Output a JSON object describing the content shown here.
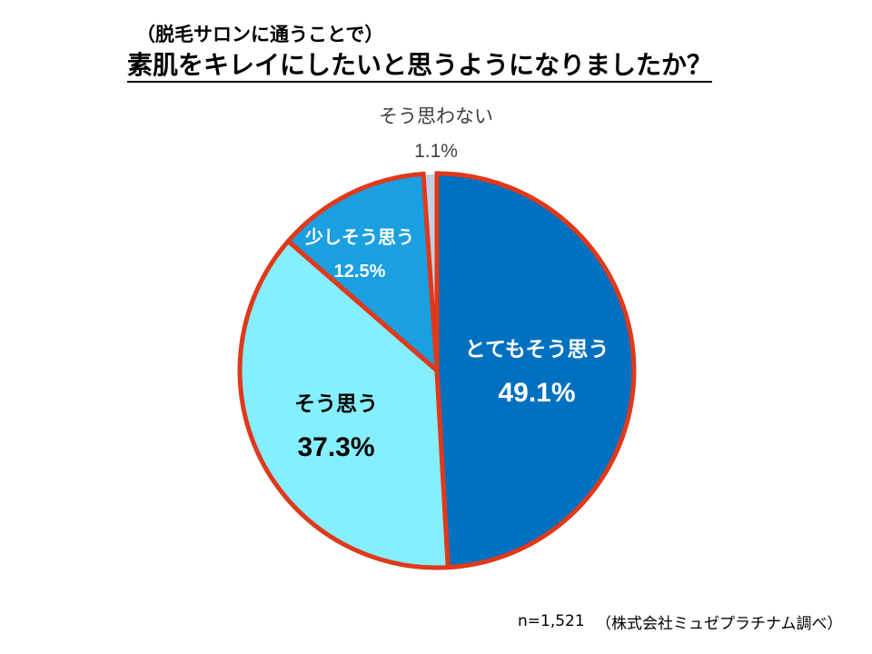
{
  "subtitle": "（脱毛サロンに通うことで）",
  "title": "素肌をキレイにしたいと思うようになりましたか？",
  "footer": {
    "n": "n=1,521",
    "source": "（株式会社ミュゼプラチナム調べ）"
  },
  "colors": {
    "outline": "#e0391a",
    "text_dark": "#000000",
    "text_light": "#ffffff",
    "callout_text": "#404040"
  },
  "chart_data": {
    "type": "pie",
    "title": "素肌をキレイにしたいと思うようになりましたか？",
    "subtitle": "（脱毛サロンに通うことで）",
    "start": "12 o'clock",
    "direction": "clockwise",
    "unit": "%",
    "slices": [
      {
        "label": "とてもそう思う",
        "value": 49.1,
        "value_label": "49.1%",
        "color": "#0070c0",
        "label_color": "#ffffff",
        "outlined": true
      },
      {
        "label": "そう思う",
        "value": 37.3,
        "value_label": "37.3%",
        "color": "#85efff",
        "label_color": "#000000",
        "outlined": true
      },
      {
        "label": "少しそう思う",
        "value": 12.5,
        "value_label": "12.5%",
        "color": "#1a9fe0",
        "label_color": "#ffffff",
        "outlined": true
      },
      {
        "label": "そう思わない",
        "value": 1.1,
        "value_label": "1.1%",
        "color": "#c5cfe3",
        "label_color": "#404040",
        "outlined": false,
        "label_position": "outside"
      }
    ]
  }
}
